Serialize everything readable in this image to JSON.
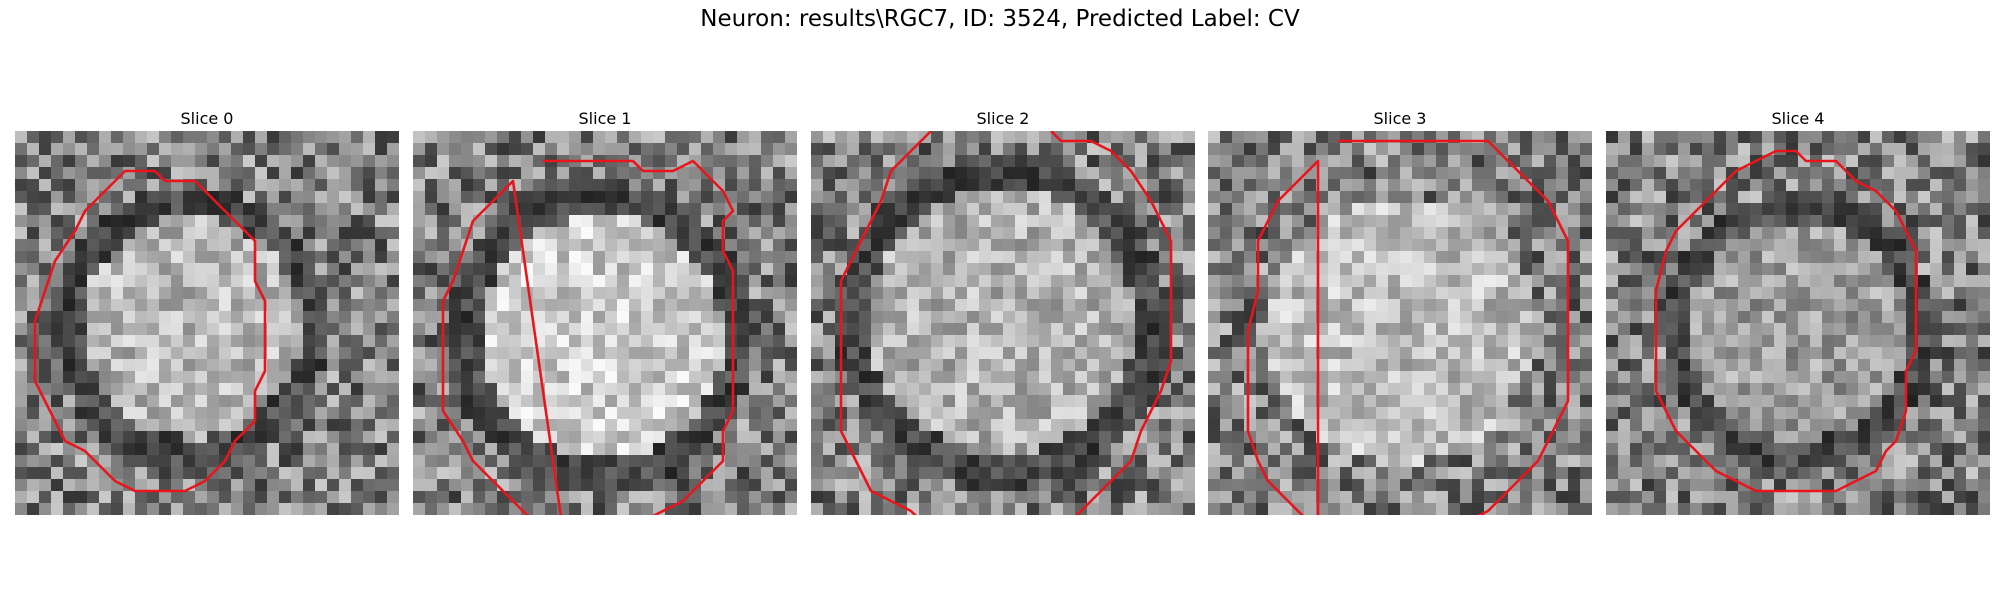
{
  "figure": {
    "suptitle": "Neuron: results\\RGC7, ID: 3524, Predicted Label: CV",
    "contour_color": "#e8161c",
    "colormap": "gray"
  },
  "panels": [
    {
      "title": "Slice 0",
      "seed": 11,
      "dark_ring": true,
      "brightness": 0.72
    },
    {
      "title": "Slice 1",
      "seed": 23,
      "dark_ring": true,
      "brightness": 0.8
    },
    {
      "title": "Slice 2",
      "seed": 37,
      "dark_ring": true,
      "brightness": 0.7
    },
    {
      "title": "Slice 3",
      "seed": 41,
      "dark_ring": false,
      "brightness": 0.74
    },
    {
      "title": "Slice 4",
      "seed": 53,
      "dark_ring": true,
      "brightness": 0.62
    }
  ]
}
